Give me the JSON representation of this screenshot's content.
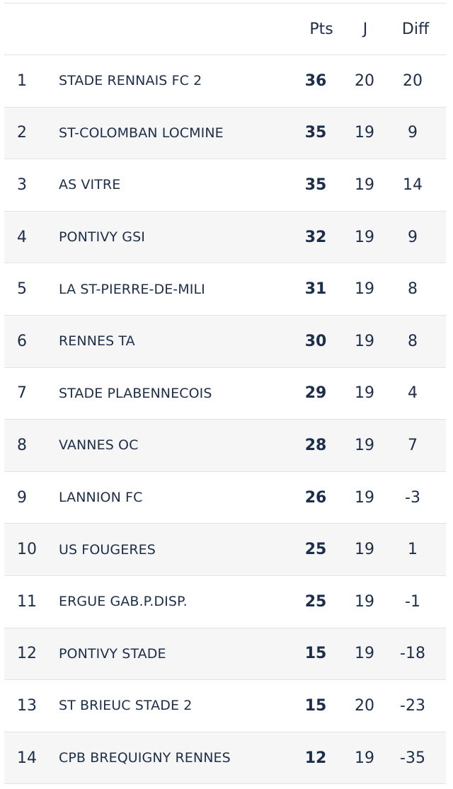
{
  "table": {
    "headers": {
      "rank": "",
      "team": "",
      "pts": "Pts",
      "j": "J",
      "diff": "Diff"
    },
    "rows": [
      {
        "rank": "1",
        "team": "STADE RENNAIS FC 2",
        "pts": "36",
        "j": "20",
        "diff": "20"
      },
      {
        "rank": "2",
        "team": "ST-COLOMBAN LOCMINE",
        "pts": "35",
        "j": "19",
        "diff": "9"
      },
      {
        "rank": "3",
        "team": "AS VITRE",
        "pts": "35",
        "j": "19",
        "diff": "14"
      },
      {
        "rank": "4",
        "team": "PONTIVY GSI",
        "pts": "32",
        "j": "19",
        "diff": "9"
      },
      {
        "rank": "5",
        "team": "LA ST-PIERRE-DE-MILI",
        "pts": "31",
        "j": "19",
        "diff": "8"
      },
      {
        "rank": "6",
        "team": "RENNES TA",
        "pts": "30",
        "j": "19",
        "diff": "8"
      },
      {
        "rank": "7",
        "team": "STADE PLABENNECOIS",
        "pts": "29",
        "j": "19",
        "diff": "4"
      },
      {
        "rank": "8",
        "team": "VANNES OC",
        "pts": "28",
        "j": "19",
        "diff": "7"
      },
      {
        "rank": "9",
        "team": "LANNION FC",
        "pts": "26",
        "j": "19",
        "diff": "-3"
      },
      {
        "rank": "10",
        "team": "US FOUGERES",
        "pts": "25",
        "j": "19",
        "diff": "1"
      },
      {
        "rank": "11",
        "team": "ERGUE GAB.P.DISP.",
        "pts": "25",
        "j": "19",
        "diff": "-1"
      },
      {
        "rank": "12",
        "team": "PONTIVY STADE",
        "pts": "15",
        "j": "19",
        "diff": "-18"
      },
      {
        "rank": "13",
        "team": "ST BRIEUC STADE 2",
        "pts": "15",
        "j": "20",
        "diff": "-23"
      },
      {
        "rank": "14",
        "team": "CPB BREQUIGNY RENNES",
        "pts": "12",
        "j": "19",
        "diff": "-35"
      }
    ]
  },
  "colors": {
    "text": "#1c2e4a",
    "row_alt_background": "#f6f6f6",
    "divider": "#e3e3e3"
  }
}
